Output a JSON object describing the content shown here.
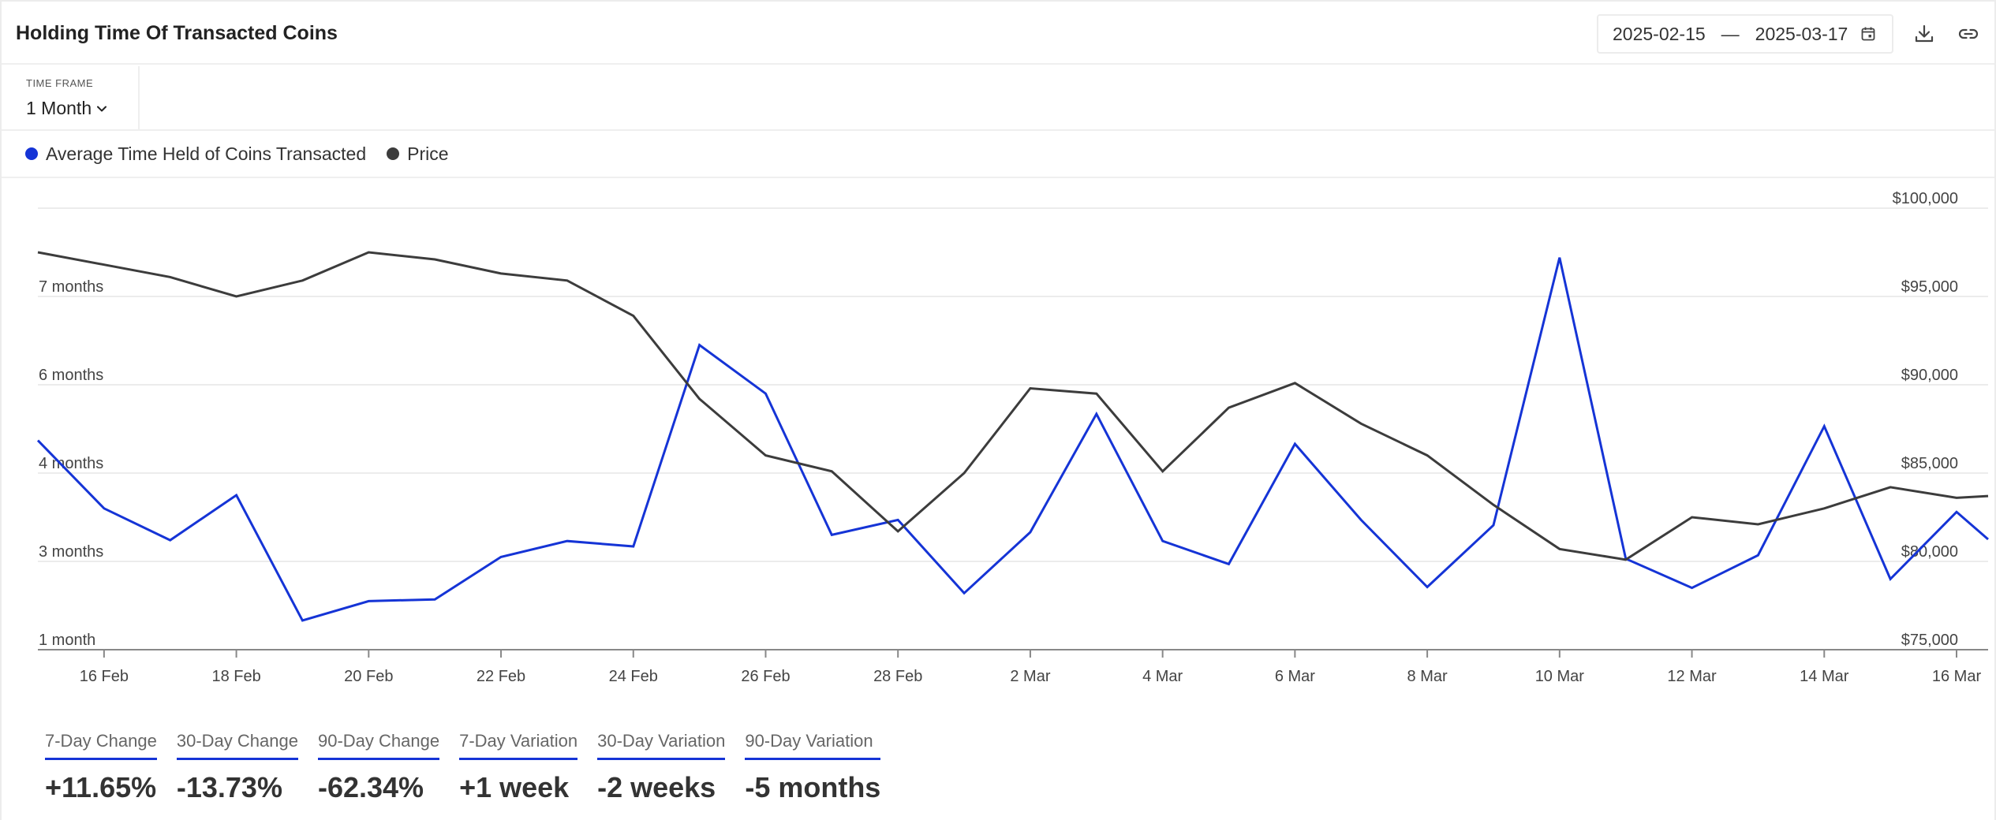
{
  "header": {
    "title": "Holding Time Of Transacted Coins",
    "date_start": "2025-02-15",
    "date_separator": "—",
    "date_end": "2025-03-17"
  },
  "timeframe": {
    "label": "TIME FRAME",
    "value": "1 Month"
  },
  "legend": [
    {
      "label": "Average Time Held of Coins Transacted",
      "color": "#1534d6"
    },
    {
      "label": "Price",
      "color": "#3c3c3c"
    }
  ],
  "stats": [
    {
      "label": "7-Day Change",
      "value": "+11.65%"
    },
    {
      "label": "30-Day Change",
      "value": "-13.73%"
    },
    {
      "label": "90-Day Change",
      "value": "-62.34%"
    },
    {
      "label": "7-Day Variation",
      "value": "+1 week"
    },
    {
      "label": "30-Day Variation",
      "value": "-2 weeks"
    },
    {
      "label": "90-Day Variation",
      "value": "-5 months"
    }
  ],
  "chart_data": {
    "type": "line",
    "grid": true,
    "x": [
      "2025-02-15",
      "2025-02-16",
      "2025-02-17",
      "2025-02-18",
      "2025-02-19",
      "2025-02-20",
      "2025-02-21",
      "2025-02-22",
      "2025-02-23",
      "2025-02-24",
      "2025-02-25",
      "2025-02-26",
      "2025-02-27",
      "2025-02-28",
      "2025-03-01",
      "2025-03-02",
      "2025-03-03",
      "2025-03-04",
      "2025-03-05",
      "2025-03-06",
      "2025-03-07",
      "2025-03-08",
      "2025-03-09",
      "2025-03-10",
      "2025-03-11",
      "2025-03-12",
      "2025-03-13",
      "2025-03-14",
      "2025-03-15",
      "2025-03-16",
      "2025-03-17"
    ],
    "x_tick_labels": [
      "16 Feb",
      "18 Feb",
      "20 Feb",
      "22 Feb",
      "24 Feb",
      "26 Feb",
      "28 Feb",
      "2 Mar",
      "4 Mar",
      "6 Mar",
      "8 Mar",
      "10 Mar",
      "12 Mar",
      "14 Mar",
      "16 Mar"
    ],
    "left_axis": {
      "tick_labels": [
        "1 month",
        "3 months",
        "4 months",
        "6 months",
        "7 months"
      ],
      "range": [
        0,
        5
      ]
    },
    "right_axis": {
      "tick_labels": [
        "$75,000",
        "$80,000",
        "$85,000",
        "$90,000",
        "$95,000",
        "$100,000"
      ],
      "range": [
        75000,
        100000
      ]
    },
    "series": [
      {
        "name": "Average Time Held of Coins Transacted",
        "axis": "left",
        "color": "#1534d6",
        "values": [
          2.37,
          1.6,
          1.24,
          1.75,
          0.33,
          0.55,
          0.57,
          1.05,
          1.23,
          1.17,
          3.45,
          2.9,
          1.3,
          1.47,
          0.64,
          1.33,
          2.67,
          1.23,
          0.97,
          2.33,
          1.47,
          0.71,
          1.41,
          4.44,
          1.03,
          0.7,
          1.07,
          2.53,
          0.8,
          1.56,
          1.25
        ]
      },
      {
        "name": "Price",
        "axis": "right",
        "color": "#3c3c3c",
        "values": [
          97500,
          96800,
          96100,
          95000,
          95900,
          97500,
          97100,
          96300,
          95900,
          93900,
          89200,
          86000,
          85100,
          81700,
          85000,
          89800,
          89500,
          85100,
          88700,
          90100,
          87800,
          86000,
          83200,
          80700,
          80100,
          82500,
          82100,
          83000,
          84200,
          83600,
          83700
        ]
      }
    ]
  }
}
